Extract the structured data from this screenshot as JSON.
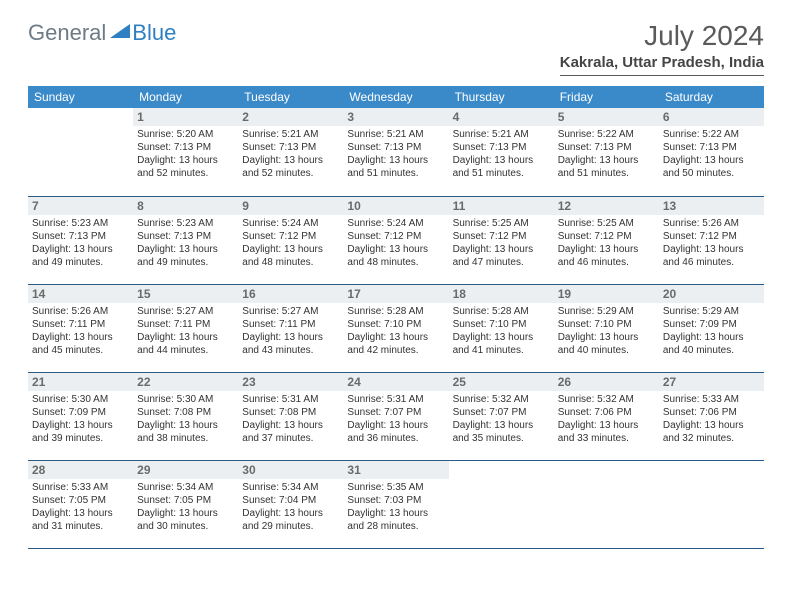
{
  "logo": {
    "part1": "General",
    "part2": "Blue"
  },
  "title": "July 2024",
  "location": "Kakrala, Uttar Pradesh, India",
  "colors": {
    "header_bg": "#3a89c9",
    "header_fg": "#ffffff",
    "daynum_bg": "#eceff1",
    "daynum_fg": "#6a6a6a",
    "rule": "#2c5a88",
    "logo_gray": "#6e7b85",
    "logo_blue": "#2f7fc2"
  },
  "weekdays": [
    "Sunday",
    "Monday",
    "Tuesday",
    "Wednesday",
    "Thursday",
    "Friday",
    "Saturday"
  ],
  "grid": [
    [
      null,
      {
        "n": "1",
        "rise": "5:20 AM",
        "set": "7:13 PM",
        "d": "13 hours and 52 minutes."
      },
      {
        "n": "2",
        "rise": "5:21 AM",
        "set": "7:13 PM",
        "d": "13 hours and 52 minutes."
      },
      {
        "n": "3",
        "rise": "5:21 AM",
        "set": "7:13 PM",
        "d": "13 hours and 51 minutes."
      },
      {
        "n": "4",
        "rise": "5:21 AM",
        "set": "7:13 PM",
        "d": "13 hours and 51 minutes."
      },
      {
        "n": "5",
        "rise": "5:22 AM",
        "set": "7:13 PM",
        "d": "13 hours and 51 minutes."
      },
      {
        "n": "6",
        "rise": "5:22 AM",
        "set": "7:13 PM",
        "d": "13 hours and 50 minutes."
      }
    ],
    [
      {
        "n": "7",
        "rise": "5:23 AM",
        "set": "7:13 PM",
        "d": "13 hours and 49 minutes."
      },
      {
        "n": "8",
        "rise": "5:23 AM",
        "set": "7:13 PM",
        "d": "13 hours and 49 minutes."
      },
      {
        "n": "9",
        "rise": "5:24 AM",
        "set": "7:12 PM",
        "d": "13 hours and 48 minutes."
      },
      {
        "n": "10",
        "rise": "5:24 AM",
        "set": "7:12 PM",
        "d": "13 hours and 48 minutes."
      },
      {
        "n": "11",
        "rise": "5:25 AM",
        "set": "7:12 PM",
        "d": "13 hours and 47 minutes."
      },
      {
        "n": "12",
        "rise": "5:25 AM",
        "set": "7:12 PM",
        "d": "13 hours and 46 minutes."
      },
      {
        "n": "13",
        "rise": "5:26 AM",
        "set": "7:12 PM",
        "d": "13 hours and 46 minutes."
      }
    ],
    [
      {
        "n": "14",
        "rise": "5:26 AM",
        "set": "7:11 PM",
        "d": "13 hours and 45 minutes."
      },
      {
        "n": "15",
        "rise": "5:27 AM",
        "set": "7:11 PM",
        "d": "13 hours and 44 minutes."
      },
      {
        "n": "16",
        "rise": "5:27 AM",
        "set": "7:11 PM",
        "d": "13 hours and 43 minutes."
      },
      {
        "n": "17",
        "rise": "5:28 AM",
        "set": "7:10 PM",
        "d": "13 hours and 42 minutes."
      },
      {
        "n": "18",
        "rise": "5:28 AM",
        "set": "7:10 PM",
        "d": "13 hours and 41 minutes."
      },
      {
        "n": "19",
        "rise": "5:29 AM",
        "set": "7:10 PM",
        "d": "13 hours and 40 minutes."
      },
      {
        "n": "20",
        "rise": "5:29 AM",
        "set": "7:09 PM",
        "d": "13 hours and 40 minutes."
      }
    ],
    [
      {
        "n": "21",
        "rise": "5:30 AM",
        "set": "7:09 PM",
        "d": "13 hours and 39 minutes."
      },
      {
        "n": "22",
        "rise": "5:30 AM",
        "set": "7:08 PM",
        "d": "13 hours and 38 minutes."
      },
      {
        "n": "23",
        "rise": "5:31 AM",
        "set": "7:08 PM",
        "d": "13 hours and 37 minutes."
      },
      {
        "n": "24",
        "rise": "5:31 AM",
        "set": "7:07 PM",
        "d": "13 hours and 36 minutes."
      },
      {
        "n": "25",
        "rise": "5:32 AM",
        "set": "7:07 PM",
        "d": "13 hours and 35 minutes."
      },
      {
        "n": "26",
        "rise": "5:32 AM",
        "set": "7:06 PM",
        "d": "13 hours and 33 minutes."
      },
      {
        "n": "27",
        "rise": "5:33 AM",
        "set": "7:06 PM",
        "d": "13 hours and 32 minutes."
      }
    ],
    [
      {
        "n": "28",
        "rise": "5:33 AM",
        "set": "7:05 PM",
        "d": "13 hours and 31 minutes."
      },
      {
        "n": "29",
        "rise": "5:34 AM",
        "set": "7:05 PM",
        "d": "13 hours and 30 minutes."
      },
      {
        "n": "30",
        "rise": "5:34 AM",
        "set": "7:04 PM",
        "d": "13 hours and 29 minutes."
      },
      {
        "n": "31",
        "rise": "5:35 AM",
        "set": "7:03 PM",
        "d": "13 hours and 28 minutes."
      },
      null,
      null,
      null
    ]
  ],
  "labels": {
    "sunrise": "Sunrise:",
    "sunset": "Sunset:",
    "daylight": "Daylight:"
  }
}
